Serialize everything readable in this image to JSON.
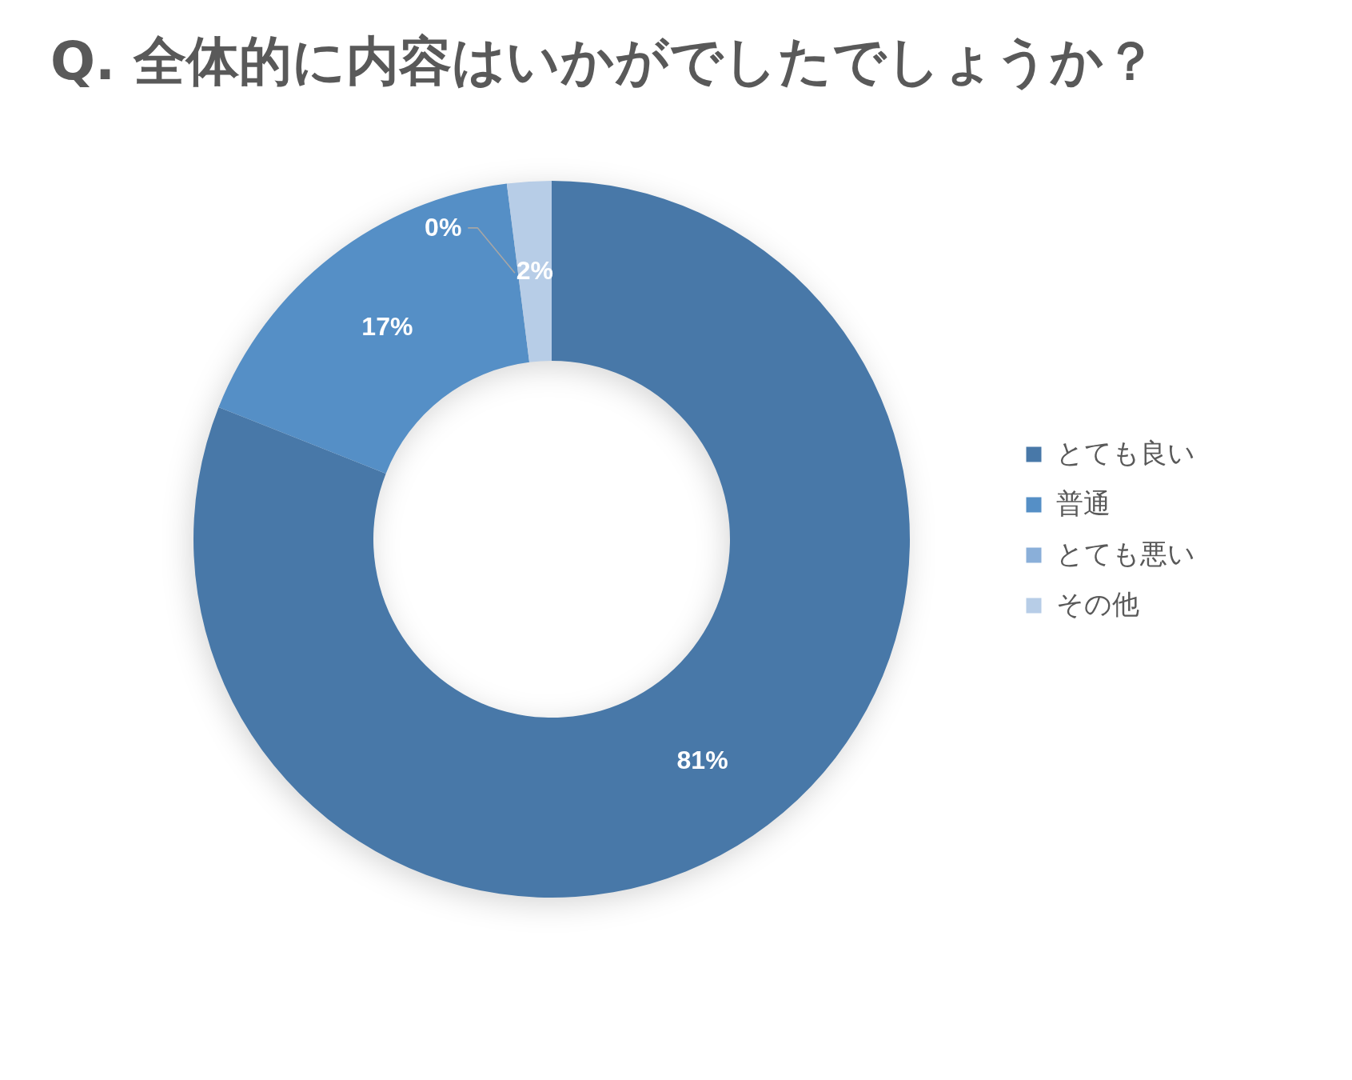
{
  "chart_data": {
    "type": "donut",
    "title": "Q. 全体的に内容はいかがでしたでしょうか？",
    "categories": [
      "とても良い",
      "普通",
      "とても悪い",
      "その他"
    ],
    "values": [
      81,
      17,
      0,
      2
    ],
    "colors": [
      "#4878a8",
      "#558fc6",
      "#8aafd9",
      "#b7cde7"
    ],
    "value_labels": [
      "81%",
      "17%",
      "0%",
      "2%"
    ],
    "legend": "right"
  }
}
